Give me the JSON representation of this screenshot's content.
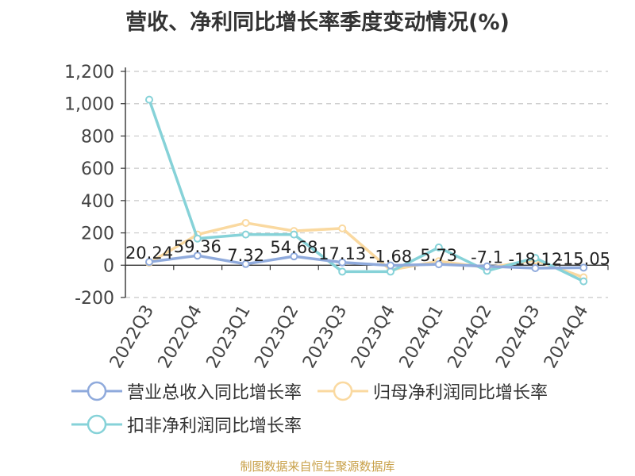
{
  "chart_data": {
    "type": "line",
    "title": "营收、净利同比增长率季度变动情况(%)",
    "categories": [
      "2022Q3",
      "2022Q4",
      "2023Q1",
      "2023Q2",
      "2023Q3",
      "2023Q4",
      "2024Q1",
      "2024Q2",
      "2024Q3",
      "2024Q4"
    ],
    "y_ticks": [
      "1,200",
      "1,000",
      "800",
      "600",
      "400",
      "200",
      "0",
      "-200"
    ],
    "ylim": [
      -200,
      1200
    ],
    "grid": true,
    "legend_position": "bottom-left",
    "series": [
      {
        "name": "营业总收入同比增长率",
        "color": "#8faadc",
        "values": [
          20.24,
          59.36,
          7.32,
          54.68,
          17.13,
          -1.68,
          5.73,
          -7.1,
          -18.12,
          -15.05
        ],
        "labels": [
          "20.24",
          "59.36",
          "7.32",
          "54.68",
          "17.13",
          "-1.68",
          "5.73",
          "-7.1",
          "-18.12",
          "-15.05"
        ]
      },
      {
        "name": "归母净利润同比增长率",
        "color": "#fad9a0",
        "values": [
          15,
          190,
          262,
          212,
          228,
          -30,
          25,
          -15,
          30,
          -75
        ]
      },
      {
        "name": "扣非净利润同比增长率",
        "color": "#86d2d8",
        "values": [
          1025,
          165,
          190,
          190,
          -40,
          -40,
          110,
          -35,
          45,
          -100
        ]
      }
    ]
  },
  "footer": {
    "source": "制图数据来自恒生聚源数据库"
  }
}
